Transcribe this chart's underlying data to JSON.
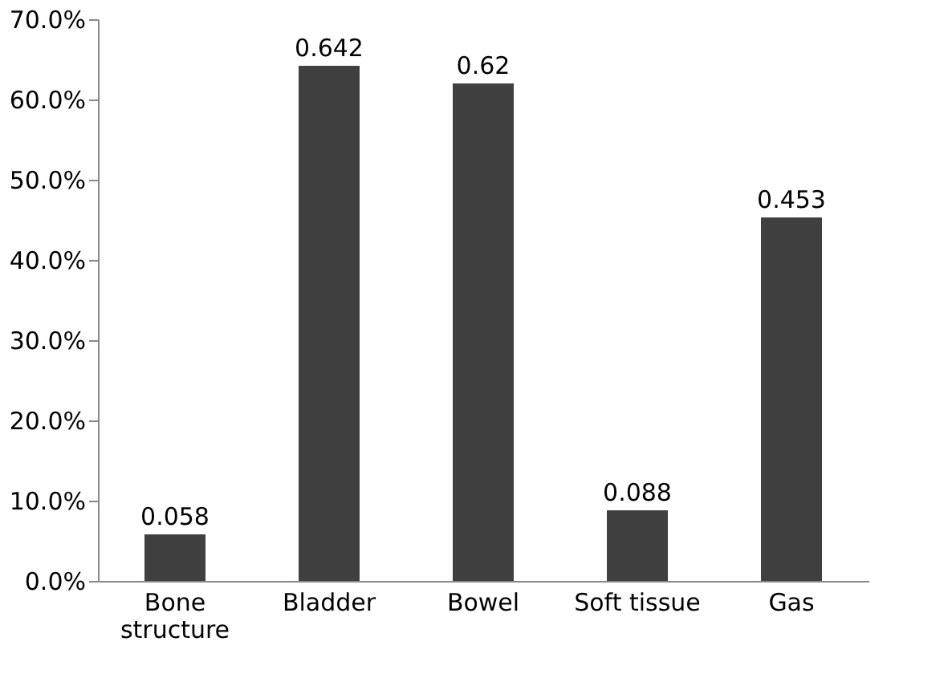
{
  "chart_data": {
    "type": "bar",
    "categories": [
      "Bone structure",
      "Bladder",
      "Bowel",
      "Soft tissue",
      "Gas"
    ],
    "values": [
      0.058,
      0.642,
      0.62,
      0.088,
      0.453
    ],
    "data_labels": true,
    "color": "#404040",
    "ylim": [
      0,
      0.7
    ],
    "yticks": [
      {
        "value": 0,
        "label": "0.0%"
      },
      {
        "value": 0.1,
        "label": "10.0%"
      },
      {
        "value": 0.2,
        "label": "20.0%"
      },
      {
        "value": 0.3,
        "label": "30.0%"
      },
      {
        "value": 0.4,
        "label": "40.0%"
      },
      {
        "value": 0.5,
        "label": "50.0%"
      },
      {
        "value": 0.6,
        "label": "60.0%"
      },
      {
        "value": 0.7,
        "label": "70.0%"
      }
    ],
    "grid": false
  }
}
